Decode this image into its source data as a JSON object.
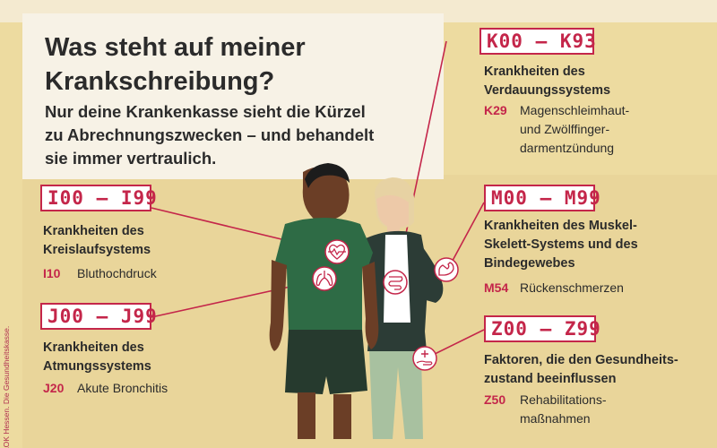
{
  "title": {
    "line1": "Was steht auf meiner",
    "line2": "Krankschreibung?"
  },
  "subtitle": {
    "line1": "Nur deine Krankenkasse sieht die Kürzel",
    "line2": "zu Abrechnungszwecken – und behandelt",
    "line3": "sie immer vertraulich."
  },
  "credit": "AOK Hessen. Die Gesundheitskasse.",
  "colors": {
    "accent": "#c4264a",
    "background": "#eddba0",
    "panel": "#f7f2e6",
    "text": "#2b2b2b"
  },
  "groups": {
    "k": {
      "code": "K00 – K93",
      "heading": [
        "Krankheiten des",
        "Verdauungssystems"
      ],
      "example_code": "K29",
      "example_text": [
        "Magenschleimhaut-",
        "und Zwölffinger-",
        "darmentzündung"
      ],
      "icon": "intestine-icon"
    },
    "i": {
      "code": "I00 – I99",
      "heading": [
        "Krankheiten des",
        "Kreislaufsystems"
      ],
      "example_code": "I10",
      "example_text": [
        "Bluthochdruck"
      ],
      "icon": "heart-pulse-icon"
    },
    "m": {
      "code": "M00 – M99",
      "heading": [
        "Krankheiten des Muskel-",
        "Skelett-Systems und des",
        "Bindegewebes"
      ],
      "example_code": "M54",
      "example_text": [
        "Rückenschmerzen"
      ],
      "icon": "flexed-arm-icon"
    },
    "j": {
      "code": "J00 – J99",
      "heading": [
        "Krankheiten des",
        "Atmungssystems"
      ],
      "example_code": "J20",
      "example_text": [
        "Akute Bronchitis"
      ],
      "icon": "lungs-icon"
    },
    "z": {
      "code": "Z00 – Z99",
      "heading": [
        "Faktoren, die den Gesundheits-",
        "zustand beeinflussen"
      ],
      "example_code": "Z50",
      "example_text": [
        "Rehabilitations-",
        "maßnahmen"
      ],
      "icon": "hand-plus-icon"
    }
  }
}
